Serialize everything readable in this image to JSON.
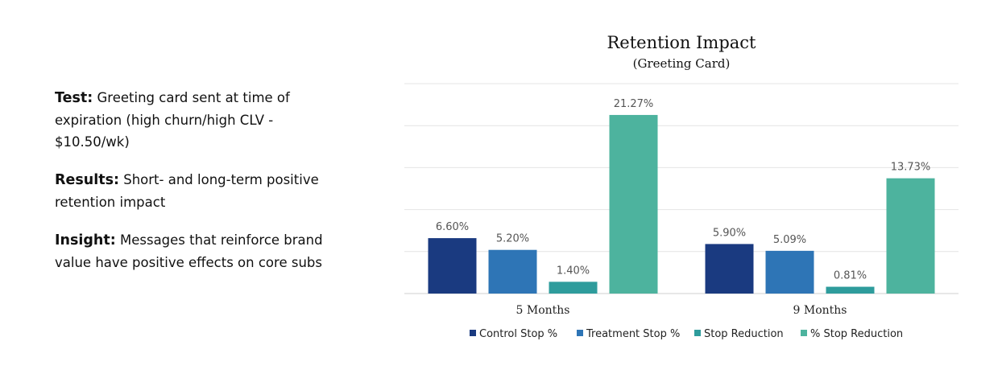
{
  "text_panel": {
    "test_label": "Test:",
    "test_text": "Greeting card sent at time of expiration (high churn/high CLV - $10.50/wk)",
    "results_label": "Results:",
    "results_text": "Short- and long-term positive retention impact",
    "insight_label": "Insight:",
    "insight_text": "Messages that reinforce brand value have positive effects on core subs"
  },
  "chart_data": {
    "type": "bar",
    "title": "Retention Impact",
    "subtitle": "(Greeting Card)",
    "categories": [
      "5 Months",
      "9 Months"
    ],
    "series": [
      {
        "name": "Control Stop %",
        "color": "#1a3a80",
        "values": [
          6.6,
          5.9
        ],
        "labels": [
          "6.60%",
          "5.90%"
        ]
      },
      {
        "name": "Treatment Stop %",
        "color": "#2e75b6",
        "values": [
          5.2,
          5.09
        ],
        "labels": [
          "5.20%",
          "5.09%"
        ]
      },
      {
        "name": "Stop Reduction",
        "color": "#2e9c9c",
        "values": [
          1.4,
          0.81
        ],
        "labels": [
          "1.40%",
          "0.81%"
        ]
      },
      {
        "name": "% Stop Reduction",
        "color": "#4db39e",
        "values": [
          21.27,
          13.73
        ],
        "labels": [
          "21.27%",
          "13.73%"
        ]
      }
    ],
    "ylim": [
      0,
      25
    ],
    "grid": true,
    "legend": "bottom"
  }
}
